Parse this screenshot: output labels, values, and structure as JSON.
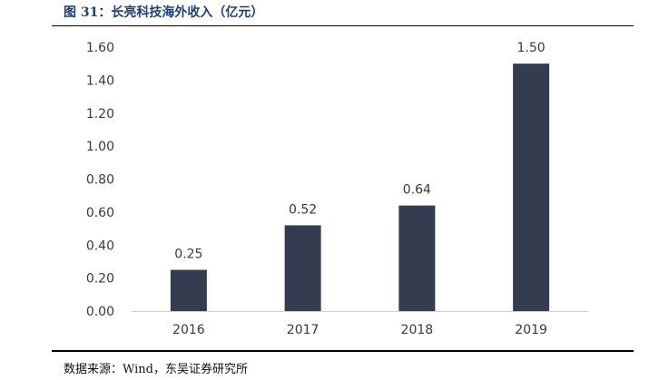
{
  "header": {
    "title": "图 31：长亮科技海外收入（亿元）"
  },
  "footer": {
    "source": "数据来源：Wind，东吴证券研究所"
  },
  "chart_data": {
    "type": "bar",
    "title": "图 31：长亮科技海外收入（亿元）",
    "xlabel": "",
    "ylabel": "",
    "categories": [
      "2016",
      "2017",
      "2018",
      "2019"
    ],
    "values": [
      0.25,
      0.52,
      0.64,
      1.5
    ],
    "data_labels": [
      "0.25",
      "0.52",
      "0.64",
      "1.50"
    ],
    "ylim": [
      0,
      1.6
    ],
    "yticks": [
      "0.00",
      "0.20",
      "0.40",
      "0.60",
      "0.80",
      "1.00",
      "1.20",
      "1.40",
      "1.60"
    ],
    "grid": false,
    "legend": "none",
    "bar_color": "#333d4f"
  }
}
